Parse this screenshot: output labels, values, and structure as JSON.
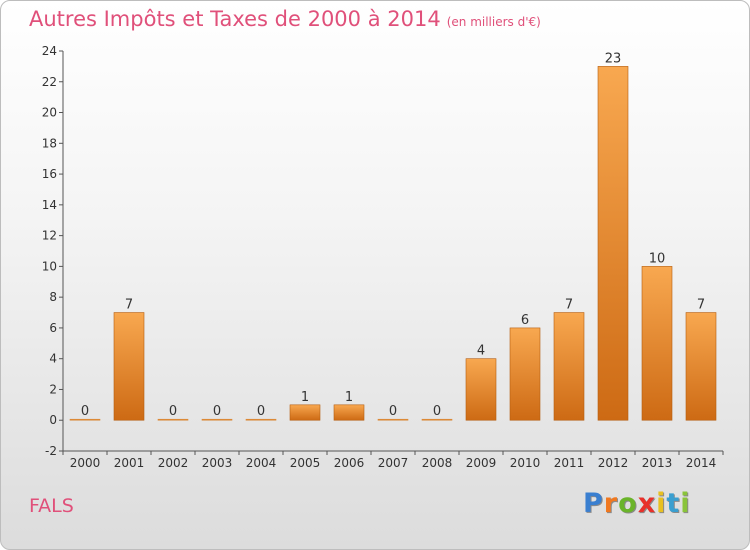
{
  "title": "Autres Impôts et Taxes de 2000 à 2014",
  "subtitle": "(en milliers d'€)",
  "commune": "FALS",
  "logo": {
    "letters": [
      "P",
      "r",
      "o",
      "x",
      "i",
      "t",
      "i"
    ],
    "colors": [
      "#3a7fd0",
      "#f07820",
      "#6ab42a",
      "#e8302a",
      "#e8c020",
      "#3a9fd0",
      "#8ac43a"
    ]
  },
  "colors": {
    "bar_light": "#f8a850",
    "bar_dark": "#cd6a14",
    "title": "#e0507a"
  },
  "chart_data": {
    "type": "bar",
    "categories": [
      "2000",
      "2001",
      "2002",
      "2003",
      "2004",
      "2005",
      "2006",
      "2007",
      "2008",
      "2009",
      "2010",
      "2011",
      "2012",
      "2013",
      "2014"
    ],
    "values": [
      0,
      7,
      0,
      0,
      0,
      1,
      1,
      0,
      0,
      4,
      6,
      7,
      23,
      10,
      7
    ],
    "data_labels": [
      "0",
      "7",
      "0",
      "0",
      "0",
      "1",
      "1",
      "0",
      "0",
      "4",
      "6",
      "7",
      "23",
      "10",
      "7"
    ],
    "yticks": [
      "-2",
      "0",
      "2",
      "4",
      "6",
      "8",
      "10",
      "12",
      "14",
      "16",
      "18",
      "20",
      "22",
      "24"
    ],
    "ylim": [
      -2,
      24
    ],
    "grid": false,
    "legend": "none"
  }
}
